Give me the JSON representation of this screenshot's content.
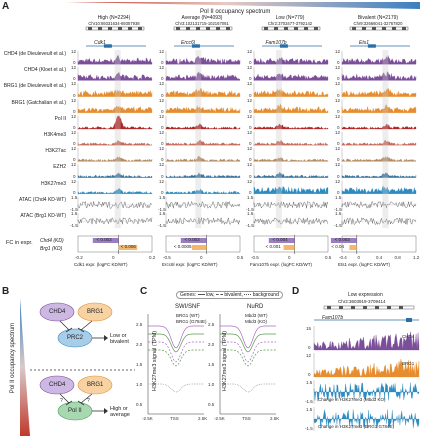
{
  "panel_a": {
    "letter": "A",
    "spectrum_title": "Pol II occupancy spectrum",
    "columns": [
      {
        "title": "High (N=2294)",
        "coords": "Chr10:69331634-69357938",
        "gene": "Cdk1",
        "fc_chd4": "< 0.003",
        "fc_brg1": "< 0.006",
        "x_label": "Cdk1 expr. (logFC KD/WT)"
      },
      {
        "title": "Average (N=4093)",
        "coords": "Chr3:102131715-102167081",
        "gene": "Ercc6l",
        "fc_chd4": "< 0.003",
        "fc_brg1": "< 0.0005",
        "x_label": "Ercc6l expr. (logFC KD/WT)"
      },
      {
        "title": "Low (N=779)",
        "coords": "Chr2:3703477-3792142",
        "gene": "Fam107b",
        "fc_chd4": "< 0.004",
        "fc_brg1": "< 0.001",
        "x_label": "Fam107b expr. (logFC KD/WT)"
      },
      {
        "title": "Bivalent (N=2179)",
        "coords": "Chr9:32666041-32767820",
        "gene": "Ets1",
        "fc_chd4": "< 0.003",
        "fc_brg1": "< 0.04",
        "x_label": "Ets1 expr. (logFC KD/WT)"
      }
    ],
    "tracks": [
      {
        "label": "CHD4 (de Dieuleveult et al.)",
        "scale": "12"
      },
      {
        "label": "CHD4 (Kloet et al.)",
        "scale": "12"
      },
      {
        "label": "BRG1 (de Dieuleveult et al.)",
        "scale": "12"
      },
      {
        "label": "BRG1 (Gatchalian et al.)",
        "scale": "12"
      },
      {
        "label": "Pol II",
        "scale": "12"
      },
      {
        "label": "H3K4me3",
        "scale": "12"
      },
      {
        "label": "H3K27ac",
        "scale": "12"
      },
      {
        "label": "EZH2",
        "scale": "12"
      },
      {
        "label": "H3K27me3",
        "scale": "12"
      },
      {
        "label": "ATAC (Chd4 KD-WT)",
        "scale": "1.5"
      },
      {
        "label": "ATAC (Brg1 KD-WT)",
        "scale": "1.5"
      }
    ],
    "track_zero": "0",
    "atac_low": "-1.5",
    "fc_label": "FC in expr.",
    "fc_rows": [
      "Chd4 (KD)",
      "Brg1 (KD)"
    ],
    "fc_ticks": [
      [
        "-0.2",
        "0",
        "0.2"
      ],
      [
        "-0.5",
        "0",
        "0.5"
      ],
      [
        "-0.5",
        "0",
        "0.5"
      ],
      [
        "-0.4",
        "0",
        "0.4",
        "0.8",
        "1.2"
      ]
    ],
    "colors": {
      "chd4": "#7b4e99",
      "brg1": "#e58d2f",
      "polii": "#b02424",
      "h3k4me3": "#c46b5b",
      "h3k27ac": "#b48a60",
      "ezh2": "#35729e",
      "h3k27me3": "#2e8bc0",
      "atac": "#444444"
    }
  },
  "panel_b": {
    "letter": "B",
    "axis_label": "Pol II occupancy spectrum",
    "chd4": "CHD4",
    "brg1": "BRG1",
    "prc2": "PRC2",
    "polii": "Pol II",
    "outcome_low": "Low or bivalent",
    "outcome_high": "High or average",
    "question": "?"
  },
  "panel_c": {
    "letter": "C",
    "legend_title": "Genes:",
    "legend_items": [
      "low",
      "bivalent",
      "background"
    ],
    "plots": [
      {
        "title": "SWI/SNF",
        "series": [
          "BRG1 (WT)",
          "BRG1 (G784E)"
        ]
      },
      {
        "title": "NuRD",
        "series": [
          "Mbd3 (WT)",
          "Mbd3 (KO)"
        ]
      }
    ],
    "ylabel": "H3K27me3 signal (TPM)",
    "yticks": [
      "2.5",
      "2.0",
      "1.5",
      "1.0",
      "0.5"
    ],
    "xticks": [
      "-2.5K",
      "TSS",
      "2.5K"
    ],
    "chart_data": {
      "type": "line",
      "x": [
        "-2.5K",
        "TSS",
        "2.5K"
      ]
    }
  },
  "panel_d": {
    "letter": "D",
    "title": "Low expression",
    "coords": "Chr2:3603919-3709414",
    "gene": "Fam107b",
    "tracks": [
      {
        "label": "CHD4",
        "scale": "15"
      },
      {
        "label": "BRG1",
        "scale": "12"
      },
      {
        "label": "Change in H3K27me3 (Mbd3 KO)",
        "scale": "1.5"
      },
      {
        "label": "Change in H3K27me3 (BRG1 G784E)",
        "scale": "1.5"
      }
    ],
    "zero": "0",
    "neg": "-1.5"
  }
}
